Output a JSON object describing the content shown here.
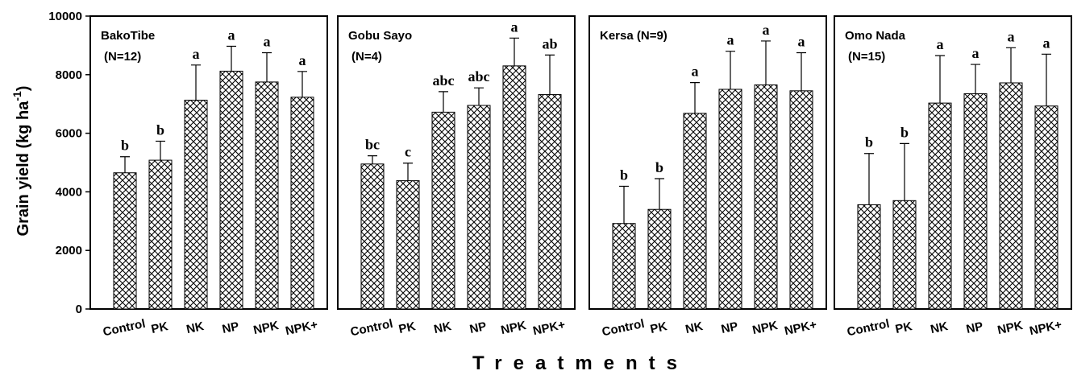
{
  "chart_data": [
    {
      "type": "bar",
      "title": [
        "BakoTibe",
        "(N=12)"
      ],
      "ylabel": [
        "Grain yield (kg ha",
        "-1",
        ")"
      ],
      "xlabel": "Treatments",
      "categories": [
        "Control",
        "PK",
        "NK",
        "NP",
        "NPK",
        "NPK+"
      ],
      "values": [
        4650,
        5080,
        7130,
        8120,
        7750,
        7230
      ],
      "errors": [
        550,
        650,
        1200,
        850,
        1000,
        880
      ],
      "annotations": [
        "b",
        "b",
        "a",
        "a",
        "a",
        "a"
      ],
      "color": "#000000",
      "hatch": "crosshatch",
      "ylim": [
        0,
        10000
      ],
      "yticks": [
        0,
        2000,
        4000,
        6000,
        8000,
        10000
      ]
    },
    {
      "type": "bar",
      "title": [
        "Gobu Sayo",
        "(N=4)"
      ],
      "categories": [
        "Control",
        "PK",
        "NK",
        "NP",
        "NPK",
        "NPK+"
      ],
      "values": [
        4950,
        4380,
        6720,
        6950,
        8300,
        7320
      ],
      "errors": [
        280,
        600,
        700,
        600,
        950,
        1350
      ],
      "annotations": [
        "bc",
        "c",
        "abc",
        "abc",
        "a",
        "ab"
      ],
      "color": "#000000",
      "hatch": "crosshatch",
      "ylim": [
        0,
        10000
      ]
    },
    {
      "type": "bar",
      "title": [
        "Kersa (N=9)"
      ],
      "categories": [
        "Control",
        "PK",
        "NK",
        "NP",
        "NPK",
        "NPK+"
      ],
      "values": [
        2920,
        3400,
        6680,
        7500,
        7650,
        7450
      ],
      "errors": [
        1270,
        1050,
        1050,
        1300,
        1500,
        1300
      ],
      "annotations": [
        "b",
        "b",
        "a",
        "a",
        "a",
        "a"
      ],
      "color": "#000000",
      "hatch": "crosshatch",
      "ylim": [
        0,
        10000
      ]
    },
    {
      "type": "bar",
      "title": [
        "Omo Nada",
        "(N=15)"
      ],
      "categories": [
        "Control",
        "PK",
        "NK",
        "NP",
        "NPK",
        "NPK+"
      ],
      "values": [
        3560,
        3700,
        7030,
        7350,
        7720,
        6930
      ],
      "errors": [
        1750,
        1950,
        1620,
        1000,
        1200,
        1770
      ],
      "annotations": [
        "b",
        "b",
        "a",
        "a",
        "a",
        "a"
      ],
      "color": "#000000",
      "hatch": "crosshatch",
      "ylim": [
        0,
        10000
      ]
    }
  ]
}
